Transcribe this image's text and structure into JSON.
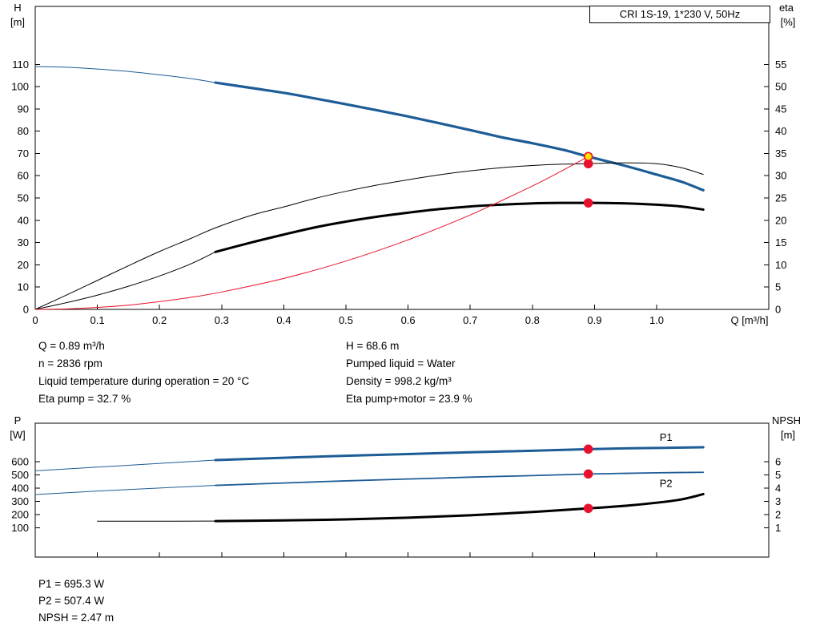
{
  "info_top": {
    "left": [
      "Q = 0.89 m³/h",
      "n = 2836 rpm",
      "Liquid temperature during operation = 20 °C",
      "Eta pump = 32.7 %"
    ],
    "right": [
      "H = 68.6 m",
      "Pumped liquid = Water",
      "Density = 998.2 kg/m³",
      "Eta pump+motor = 23.9 %"
    ]
  },
  "info_bottom": [
    "P1 = 695.3 W",
    "P2 = 507.4 W",
    "NPSH = 2.47 m"
  ],
  "colors": {
    "curve_blue": "#1d5c96",
    "curve_black": "#000000",
    "curve_red": "#e8112d",
    "dot_red": "#e8112d",
    "dot_yellow": "#ffe000"
  },
  "chart_data": [
    {
      "type": "line",
      "title": "CRI 1S-19, 1*230 V, 50Hz",
      "x": {
        "label": "Q [m³/h]",
        "min": 0,
        "max": 1.1804,
        "ticks": [
          0,
          0.1,
          0.2,
          0.3,
          0.4,
          0.5,
          0.6,
          0.7,
          0.8,
          0.9,
          1.0
        ],
        "tick_labels": [
          "0",
          "0.1",
          "0.2",
          "0.3",
          "0.4",
          "0.5",
          "0.6",
          "0.7",
          "0.8",
          "0.9",
          "1.0"
        ]
      },
      "y_left": {
        "name": "H",
        "unit": "[m]",
        "min": 0,
        "max": 136,
        "ticks": [
          0,
          10,
          20,
          30,
          40,
          50,
          60,
          70,
          80,
          90,
          100,
          110
        ]
      },
      "y_right": {
        "name": "eta",
        "unit": "[%]",
        "min": 0,
        "max": 68,
        "ticks": [
          0,
          5,
          10,
          15,
          20,
          25,
          30,
          35,
          40,
          45,
          50,
          55
        ]
      },
      "series": [
        {
          "name": "H-curve-lead-in",
          "axis": "left",
          "color": "#1d5c96",
          "width": 1,
          "points": [
            [
              0,
              109
            ],
            [
              0.05,
              108.7
            ],
            [
              0.1,
              107.9
            ],
            [
              0.15,
              106.8
            ],
            [
              0.2,
              105.3
            ],
            [
              0.25,
              103.6
            ],
            [
              0.29,
              101.8
            ]
          ]
        },
        {
          "name": "H-curve",
          "axis": "left",
          "color": "#1d5c96",
          "width": 3.2,
          "points": [
            [
              0.29,
              101.8
            ],
            [
              0.35,
              99.3
            ],
            [
              0.4,
              97.2
            ],
            [
              0.45,
              94.7
            ],
            [
              0.5,
              92.1
            ],
            [
              0.55,
              89.4
            ],
            [
              0.6,
              86.6
            ],
            [
              0.65,
              83.6
            ],
            [
              0.7,
              80.5
            ],
            [
              0.75,
              77.3
            ],
            [
              0.8,
              74.6
            ],
            [
              0.85,
              71.6
            ],
            [
              0.89,
              68.6
            ],
            [
              0.95,
              64.4
            ],
            [
              1.0,
              60.5
            ],
            [
              1.04,
              57.3
            ],
            [
              1.075,
              53.5
            ]
          ]
        },
        {
          "name": "eta-pump-curve",
          "axis": "right",
          "color": "#000000",
          "width": 1,
          "points": [
            [
              0,
              0
            ],
            [
              0.05,
              3.2
            ],
            [
              0.1,
              6.5
            ],
            [
              0.15,
              9.8
            ],
            [
              0.2,
              13
            ],
            [
              0.25,
              15.9
            ],
            [
              0.29,
              18.3
            ],
            [
              0.35,
              21.2
            ],
            [
              0.4,
              23
            ],
            [
              0.45,
              24.9
            ],
            [
              0.5,
              26.5
            ],
            [
              0.55,
              27.9
            ],
            [
              0.6,
              29.1
            ],
            [
              0.65,
              30.2
            ],
            [
              0.7,
              31.1
            ],
            [
              0.75,
              31.8
            ],
            [
              0.8,
              32.3
            ],
            [
              0.85,
              32.6
            ],
            [
              0.89,
              32.7
            ],
            [
              0.95,
              32.9
            ],
            [
              1.0,
              32.7
            ],
            [
              1.04,
              31.8
            ],
            [
              1.075,
              30.3
            ]
          ]
        },
        {
          "name": "eta-pump-motor-lead-in",
          "axis": "right",
          "color": "#000000",
          "width": 1,
          "points": [
            [
              0,
              0
            ],
            [
              0.05,
              1.5
            ],
            [
              0.1,
              3.2
            ],
            [
              0.15,
              5.2
            ],
            [
              0.2,
              7.5
            ],
            [
              0.25,
              10.2
            ],
            [
              0.29,
              12.9
            ]
          ]
        },
        {
          "name": "eta-pump-motor-curve",
          "axis": "right",
          "color": "#000000",
          "width": 3,
          "points": [
            [
              0.29,
              12.9
            ],
            [
              0.35,
              15.1
            ],
            [
              0.4,
              16.8
            ],
            [
              0.45,
              18.4
            ],
            [
              0.5,
              19.7
            ],
            [
              0.55,
              20.8
            ],
            [
              0.6,
              21.7
            ],
            [
              0.65,
              22.5
            ],
            [
              0.7,
              23.1
            ],
            [
              0.75,
              23.5
            ],
            [
              0.8,
              23.8
            ],
            [
              0.85,
              23.9
            ],
            [
              0.89,
              23.9
            ],
            [
              0.95,
              23.8
            ],
            [
              1.0,
              23.5
            ],
            [
              1.04,
              23.1
            ],
            [
              1.075,
              22.4
            ]
          ]
        },
        {
          "name": "system-curve",
          "axis": "left",
          "color": "#e8112d",
          "width": 1,
          "points": [
            [
              0,
              0
            ],
            [
              0.05,
              0.22
            ],
            [
              0.1,
              0.9
            ],
            [
              0.15,
              1.9
            ],
            [
              0.2,
              3.5
            ],
            [
              0.25,
              5.4
            ],
            [
              0.3,
              7.8
            ],
            [
              0.4,
              13.9
            ],
            [
              0.5,
              21.7
            ],
            [
              0.6,
              31.2
            ],
            [
              0.7,
              42.4
            ],
            [
              0.8,
              55.4
            ],
            [
              0.85,
              62.6
            ],
            [
              0.89,
              68.6
            ]
          ]
        }
      ],
      "dots": [
        {
          "name": "eta-pump-point",
          "x": 0.89,
          "v": 32.7,
          "axis": "right",
          "fill": "#e8112d",
          "stroke": "#e8112d"
        },
        {
          "name": "eta-pump-motor-point",
          "x": 0.89,
          "v": 23.9,
          "axis": "right",
          "fill": "#e8112d",
          "stroke": "#e8112d"
        },
        {
          "name": "duty-point",
          "x": 0.89,
          "v": 68.6,
          "axis": "left",
          "fill": "#ffe000",
          "stroke": "#e8112d"
        }
      ],
      "curve_labels": []
    },
    {
      "type": "line",
      "title": "",
      "x": {
        "min": 0,
        "max": 1.1804,
        "ticks": [
          0,
          0.1,
          0.2,
          0.3,
          0.4,
          0.5,
          0.6,
          0.7,
          0.8,
          0.9,
          1.0
        ]
      },
      "y_left": {
        "name": "P",
        "unit": "[W]",
        "min": -121,
        "max": 891,
        "ticks": [
          100,
          200,
          300,
          400,
          500,
          600
        ]
      },
      "y_right": {
        "name": "NPSH",
        "unit": "[m]",
        "min": -1.21,
        "max": 8.91,
        "ticks": [
          1,
          2,
          3,
          4,
          5,
          6
        ]
      },
      "series": [
        {
          "name": "P1-lead-in",
          "axis": "left",
          "color": "#1d5c96",
          "width": 1,
          "points": [
            [
              0,
              531
            ],
            [
              0.1,
              559
            ],
            [
              0.2,
              587
            ],
            [
              0.29,
              612
            ]
          ]
        },
        {
          "name": "P1-curve",
          "axis": "left",
          "color": "#1d5c96",
          "width": 3,
          "points": [
            [
              0.29,
              612
            ],
            [
              0.4,
              630
            ],
            [
              0.5,
              645
            ],
            [
              0.6,
              658
            ],
            [
              0.7,
              671
            ],
            [
              0.8,
              683
            ],
            [
              0.89,
              695
            ],
            [
              0.95,
              701
            ],
            [
              1.0,
              704
            ],
            [
              1.075,
              709
            ]
          ]
        },
        {
          "name": "P2-lead-in",
          "axis": "left",
          "color": "#1d5c96",
          "width": 1,
          "points": [
            [
              0,
              352
            ],
            [
              0.1,
              378
            ],
            [
              0.2,
              401
            ],
            [
              0.29,
              421
            ]
          ]
        },
        {
          "name": "P2-curve",
          "axis": "left",
          "color": "#1d5c96",
          "width": 1.8,
          "points": [
            [
              0.29,
              421
            ],
            [
              0.4,
              439
            ],
            [
              0.5,
              455
            ],
            [
              0.6,
              469
            ],
            [
              0.7,
              483
            ],
            [
              0.8,
              495
            ],
            [
              0.89,
              507
            ],
            [
              0.95,
              512
            ],
            [
              1.0,
              516
            ],
            [
              1.075,
              520
            ]
          ]
        },
        {
          "name": "NPSH-lead-in",
          "axis": "right",
          "color": "#000000",
          "width": 1,
          "points": [
            [
              0.1,
              1.5
            ],
            [
              0.2,
              1.5
            ],
            [
              0.29,
              1.51
            ]
          ]
        },
        {
          "name": "NPSH-curve",
          "axis": "right",
          "color": "#000000",
          "width": 3,
          "points": [
            [
              0.29,
              1.51
            ],
            [
              0.4,
              1.56
            ],
            [
              0.5,
              1.64
            ],
            [
              0.6,
              1.77
            ],
            [
              0.7,
              1.95
            ],
            [
              0.8,
              2.2
            ],
            [
              0.89,
              2.47
            ],
            [
              0.95,
              2.67
            ],
            [
              1.0,
              2.9
            ],
            [
              1.04,
              3.15
            ],
            [
              1.075,
              3.55
            ]
          ]
        }
      ],
      "dots": [
        {
          "name": "p1-point",
          "x": 0.89,
          "v": 695.3,
          "axis": "left",
          "fill": "#e8112d",
          "stroke": "#e8112d"
        },
        {
          "name": "p2-point",
          "x": 0.89,
          "v": 507.4,
          "axis": "left",
          "fill": "#e8112d",
          "stroke": "#e8112d"
        },
        {
          "name": "npsh-point",
          "x": 0.89,
          "v": 2.47,
          "axis": "right",
          "fill": "#e8112d",
          "stroke": "#e8112d"
        }
      ],
      "curve_labels": [
        {
          "text": "P1",
          "x": 1.015,
          "v": 782,
          "axis": "left",
          "color": "#1d5c96"
        },
        {
          "text": "P2",
          "x": 1.015,
          "v": 432,
          "axis": "left",
          "color": "#1d5c96"
        }
      ]
    }
  ]
}
